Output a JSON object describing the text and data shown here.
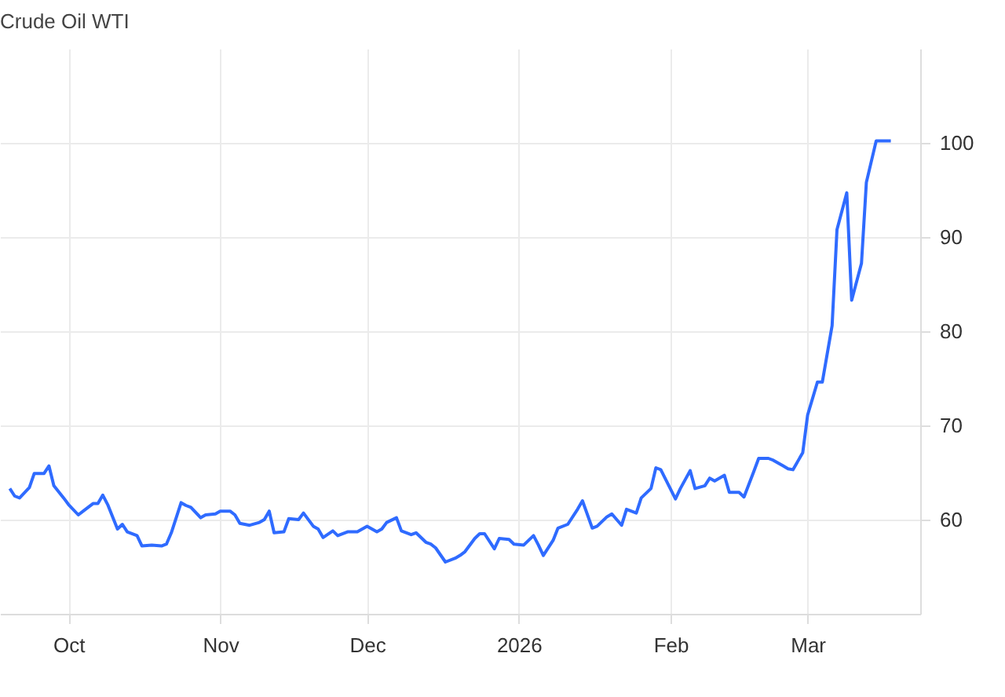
{
  "chart_data": {
    "type": "line",
    "title": "Crude Oil WTI",
    "x": [
      "2025-09-19",
      "2025-09-20",
      "2025-09-21",
      "2025-09-23",
      "2025-09-24",
      "2025-09-26",
      "2025-09-27",
      "2025-09-28",
      "2025-09-30",
      "2025-10-01",
      "2025-10-03",
      "2025-10-04",
      "2025-10-06",
      "2025-10-07",
      "2025-10-08",
      "2025-10-09",
      "2025-10-11",
      "2025-10-12",
      "2025-10-13",
      "2025-10-15",
      "2025-10-16",
      "2025-10-18",
      "2025-10-20",
      "2025-10-21",
      "2025-10-22",
      "2025-10-24",
      "2025-10-25",
      "2025-10-26",
      "2025-10-28",
      "2025-10-29",
      "2025-10-31",
      "2025-11-01",
      "2025-11-03",
      "2025-11-04",
      "2025-11-05",
      "2025-11-07",
      "2025-11-09",
      "2025-11-10",
      "2025-11-11",
      "2025-11-12",
      "2025-11-14",
      "2025-11-15",
      "2025-11-17",
      "2025-11-18",
      "2025-11-20",
      "2025-11-21",
      "2025-11-22",
      "2025-11-24",
      "2025-11-25",
      "2025-11-27",
      "2025-11-29",
      "2025-12-01",
      "2025-12-03",
      "2025-12-04",
      "2025-12-05",
      "2025-12-07",
      "2025-12-08",
      "2025-12-10",
      "2025-12-11",
      "2025-12-13",
      "2025-12-14",
      "2025-12-15",
      "2025-12-17",
      "2025-12-19",
      "2025-12-20",
      "2025-12-21",
      "2025-12-23",
      "2025-12-24",
      "2025-12-25",
      "2025-12-27",
      "2025-12-28",
      "2025-12-30",
      "2025-12-31",
      "2026-01-02",
      "2026-01-04",
      "2026-01-05",
      "2026-01-06",
      "2026-01-08",
      "2026-01-09",
      "2026-01-11",
      "2026-01-13",
      "2026-01-14",
      "2026-01-16",
      "2026-01-17",
      "2026-01-19",
      "2026-01-20",
      "2026-01-22",
      "2026-01-23",
      "2026-01-25",
      "2026-01-26",
      "2026-01-28",
      "2026-01-29",
      "2026-01-30",
      "2026-02-02",
      "2026-02-03",
      "2026-02-05",
      "2026-02-06",
      "2026-02-08",
      "2026-02-09",
      "2026-02-10",
      "2026-02-12",
      "2026-02-13",
      "2026-02-15",
      "2026-02-16",
      "2026-02-18",
      "2026-02-19",
      "2026-02-21",
      "2026-02-22",
      "2026-02-24",
      "2026-02-25",
      "2026-02-26",
      "2026-02-28",
      "2026-03-01",
      "2026-03-03",
      "2026-03-04",
      "2026-03-06",
      "2026-03-07",
      "2026-03-09",
      "2026-03-10",
      "2026-03-12",
      "2026-03-13",
      "2026-03-15",
      "2026-03-16",
      "2026-03-18"
    ],
    "series": [
      {
        "color": "#2f6bff",
        "values": [
          63.3,
          62.5,
          62.3,
          63.4,
          64.9,
          64.9,
          65.7,
          63.6,
          62.3,
          61.6,
          60.5,
          60.9,
          61.7,
          61.7,
          62.6,
          61.6,
          59.0,
          59.5,
          58.7,
          58.3,
          57.2,
          57.3,
          57.2,
          57.4,
          58.6,
          61.8,
          61.5,
          61.3,
          60.2,
          60.5,
          60.6,
          60.9,
          60.9,
          60.5,
          59.6,
          59.4,
          59.7,
          60.0,
          60.9,
          58.6,
          58.7,
          60.1,
          60.0,
          60.7,
          59.3,
          59.0,
          58.1,
          58.8,
          58.3,
          58.7,
          58.7,
          59.3,
          58.7,
          59.0,
          59.7,
          60.2,
          58.8,
          58.4,
          58.6,
          57.6,
          57.4,
          57.0,
          55.5,
          55.9,
          56.2,
          56.6,
          58.0,
          58.5,
          58.5,
          56.9,
          58.0,
          57.9,
          57.4,
          57.3,
          58.3,
          57.3,
          56.2,
          57.8,
          59.1,
          59.5,
          61.1,
          62.0,
          59.1,
          59.3,
          60.3,
          60.6,
          59.4,
          61.1,
          60.7,
          62.3,
          63.3,
          65.5,
          65.3,
          62.2,
          63.3,
          65.2,
          63.3,
          63.6,
          64.4,
          64.1,
          64.7,
          62.9,
          62.9,
          62.4,
          65.1,
          66.5,
          66.5,
          66.3,
          65.7,
          65.4,
          65.3,
          67.1,
          71.1,
          74.6,
          74.6,
          80.6,
          90.8,
          94.7,
          83.3,
          87.2,
          95.8,
          100.2,
          100.2,
          100.2
        ]
      }
    ],
    "xlim": [
      "2025-09-17",
      "2026-03-24"
    ],
    "xticks": [
      {
        "value": "2025-10-01",
        "label": "Oct"
      },
      {
        "value": "2025-11-01",
        "label": "Nov"
      },
      {
        "value": "2025-12-01",
        "label": "Dec"
      },
      {
        "value": "2026-01-01",
        "label": "2026"
      },
      {
        "value": "2026-02-01",
        "label": "Feb"
      },
      {
        "value": "2026-03-01",
        "label": "Mar"
      }
    ],
    "ylim": [
      50,
      110
    ],
    "yticks": [
      60,
      70,
      80,
      90,
      100
    ],
    "grid": true,
    "line_style": "solid"
  }
}
